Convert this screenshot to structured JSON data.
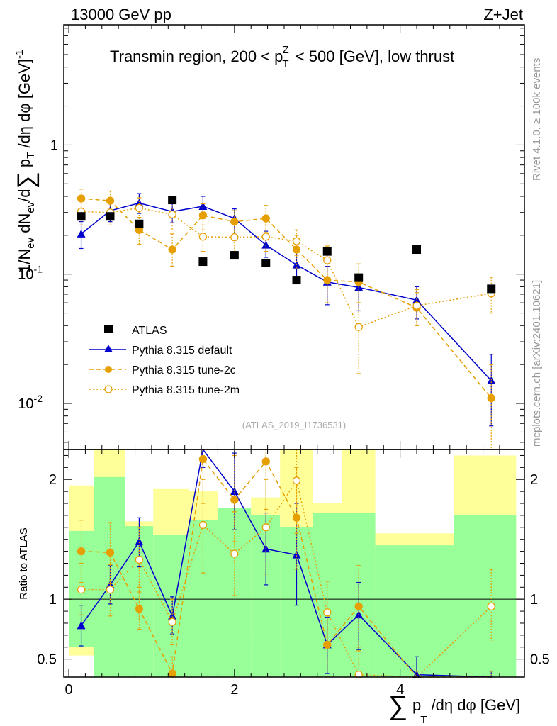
{
  "header": {
    "energy_label": "13000 GeV pp",
    "process_label": "Z+Jet"
  },
  "side_labels": {
    "rivet": "Rivet 4.1.0, ≥ 100k events",
    "mcplots": "mcplots.cern.ch [arXiv:2401.10621]"
  },
  "colors": {
    "data": "#000000",
    "default": "#0000cc",
    "tune_2c": "#e69f00",
    "tune_2m": "#e69f00",
    "band_inner": "#99ff99",
    "band_outer": "#ffff99"
  },
  "chart_data": [
    {
      "type": "scatter",
      "title": "Transmin region, 200 < p_T^Z < 500 [GeV], low thrust",
      "watermark": "(ATLAS_2019_I1736531)",
      "ylabel": "1/N_ev dN_ev/d∑ p_T /dη dφ [GeV]^-1",
      "yscale": "log",
      "ylim": [
        0.0044,
        8.5
      ],
      "xlim": [
        -0.06,
        5.5
      ],
      "y_tick_labels": [
        "1",
        "10^-1",
        "10^-2"
      ],
      "legend": [
        "ATLAS",
        "Pythia 8.315 default",
        "Pythia 8.315 tune-2c",
        "Pythia 8.315 tune-2m"
      ],
      "series": [
        {
          "name": "ATLAS",
          "marker": "filled-square",
          "x": [
            0.15,
            0.5,
            0.85,
            1.25,
            1.62,
            2.0,
            2.38,
            2.75,
            3.12,
            3.5,
            4.2,
            5.1
          ],
          "values": [
            0.28,
            0.28,
            0.245,
            0.375,
            0.125,
            0.14,
            0.122,
            0.09,
            0.15,
            0.094,
            0.155,
            0.077
          ]
        },
        {
          "name": "Pythia 8.315 default",
          "marker": "filled-triangle",
          "x": [
            0.15,
            0.5,
            0.85,
            1.25,
            1.62,
            2.0,
            2.38,
            2.75,
            3.12,
            3.5,
            4.2,
            5.1
          ],
          "values": [
            0.205,
            0.31,
            0.355,
            0.305,
            0.335,
            0.27,
            0.168,
            0.118,
            0.087,
            0.079,
            0.063,
            0.015
          ],
          "err_low": [
            0.158,
            0.255,
            0.295,
            0.25,
            0.27,
            0.2,
            0.135,
            0.085,
            0.058,
            0.052,
            0.045,
            0.0067
          ],
          "err_high": [
            0.255,
            0.37,
            0.42,
            0.37,
            0.4,
            0.32,
            0.215,
            0.15,
            0.115,
            0.1,
            0.08,
            0.024
          ]
        },
        {
          "name": "Pythia 8.315 tune-2c",
          "marker": "filled-circle",
          "x": [
            0.15,
            0.5,
            0.85,
            1.25,
            1.62,
            2.0,
            2.38,
            2.75,
            3.12,
            3.5,
            4.2,
            5.1
          ],
          "values": [
            0.385,
            0.37,
            0.22,
            0.155,
            0.285,
            0.255,
            0.27,
            0.155,
            0.09,
            0.087,
            0.055,
            0.011
          ],
          "err_low": [
            0.315,
            0.3,
            0.17,
            0.115,
            0.22,
            0.19,
            0.21,
            0.11,
            0.06,
            0.06,
            0.04,
            0.0044
          ],
          "err_high": [
            0.455,
            0.44,
            0.275,
            0.205,
            0.35,
            0.31,
            0.34,
            0.2,
            0.12,
            0.12,
            0.072,
            0.02
          ]
        },
        {
          "name": "Pythia 8.315 tune-2m",
          "marker": "open-circle",
          "x": [
            0.15,
            0.5,
            0.85,
            1.25,
            1.62,
            2.0,
            2.38,
            2.75,
            3.12,
            3.5,
            4.2,
            5.1
          ],
          "values": [
            0.305,
            0.3,
            0.325,
            0.29,
            0.195,
            0.193,
            0.195,
            0.18,
            0.128,
            0.039,
            0.057,
            0.071
          ],
          "err_low": [
            0.24,
            0.24,
            0.26,
            0.22,
            0.15,
            0.15,
            0.15,
            0.14,
            0.09,
            0.017,
            0.04,
            0.05
          ],
          "err_high": [
            0.37,
            0.36,
            0.39,
            0.36,
            0.24,
            0.24,
            0.24,
            0.22,
            0.165,
            0.06,
            0.076,
            0.095
          ]
        }
      ]
    },
    {
      "type": "scatter",
      "title": "Ratio to ATLAS",
      "ylabel": "Ratio to ATLAS",
      "xlabel": "∑ p_T /dη dφ [GeV]",
      "yscale": "linear",
      "ylim": [
        0.35,
        2.25
      ],
      "xlim": [
        -0.06,
        5.5
      ],
      "x_ticks": [
        0,
        2,
        4
      ],
      "y_ticks": [
        0.5,
        1,
        2
      ],
      "reference_line": 1,
      "bands": {
        "bin_edges": [
          0,
          0.3,
          0.68,
          1.02,
          1.45,
          1.8,
          2.2,
          2.55,
          2.95,
          3.3,
          3.7,
          4.65,
          5.4
        ],
        "inner_low": [
          0.6,
          0.35,
          0.35,
          0.35,
          0.35,
          0.35,
          0.35,
          0.35,
          0.35,
          0.35,
          0.35,
          0.35
        ],
        "inner_high": [
          1.57,
          2.02,
          1.61,
          1.54,
          1.66,
          1.76,
          1.7,
          1.6,
          1.72,
          1.72,
          1.45,
          1.7
        ],
        "outer_low": [
          0.53,
          0.35,
          0.75,
          0.38,
          0.58,
          0.61,
          0.68,
          0.65,
          0.62,
          0.35,
          0.8,
          0.55
        ],
        "outer_high": [
          1.95,
          2.25,
          1.65,
          1.92,
          1.9,
          1.7,
          1.85,
          2.25,
          1.8,
          2.25,
          1.55,
          2.2
        ]
      },
      "series": [
        {
          "name": "Pythia 8.315 default",
          "x": [
            0.15,
            0.5,
            0.85,
            1.25,
            1.62,
            2.0,
            2.38,
            2.75,
            3.12,
            3.5,
            4.2,
            5.1
          ],
          "values": [
            0.78,
            1.12,
            1.48,
            0.86,
            2.3,
            1.9,
            1.42,
            1.37,
            0.62,
            0.87,
            0.37,
            0.3
          ],
          "err_low": [
            0.61,
            0.96,
            1.27,
            0.71,
            2.1,
            1.58,
            1.12,
            0.95,
            0.38,
            0.58,
            0.3,
            0.2
          ],
          "err_high": [
            0.95,
            1.28,
            1.68,
            1.02,
            2.5,
            2.22,
            1.72,
            1.8,
            0.85,
            1.14,
            0.52,
            0.4
          ]
        },
        {
          "name": "Pythia 8.315 tune-2c",
          "x": [
            0.15,
            0.5,
            0.85,
            1.25,
            1.62,
            2.0,
            2.38,
            2.75,
            3.12,
            3.5,
            4.2,
            5.1
          ],
          "values": [
            1.4,
            1.39,
            0.92,
            0.38,
            2.17,
            1.83,
            2.15,
            1.68,
            0.62,
            0.94,
            0.3,
            0.3
          ],
          "err_low": [
            1.14,
            1.13,
            0.75,
            0.26,
            1.8,
            1.48,
            1.75,
            1.25,
            0.35,
            0.6,
            0.2,
            0.2
          ],
          "err_high": [
            1.66,
            1.64,
            1.1,
            0.52,
            2.5,
            2.2,
            2.5,
            2.1,
            0.88,
            1.28,
            0.4,
            0.4
          ]
        },
        {
          "name": "Pythia 8.315 tune-2m",
          "x": [
            0.15,
            0.5,
            0.85,
            1.25,
            1.62,
            2.0,
            2.38,
            2.75,
            3.12,
            3.5,
            4.2,
            5.1
          ],
          "values": [
            1.08,
            1.08,
            1.33,
            0.81,
            1.62,
            1.38,
            1.6,
            1.99,
            0.89,
            0.37,
            0.3,
            0.94
          ],
          "err_low": [
            0.87,
            0.86,
            1.06,
            0.62,
            1.22,
            1.03,
            1.21,
            1.55,
            0.62,
            0.17,
            0.2,
            0.66
          ],
          "err_high": [
            1.3,
            1.29,
            1.6,
            1.0,
            2.0,
            1.73,
            2.0,
            2.42,
            1.15,
            0.57,
            0.4,
            1.25
          ]
        }
      ]
    }
  ]
}
